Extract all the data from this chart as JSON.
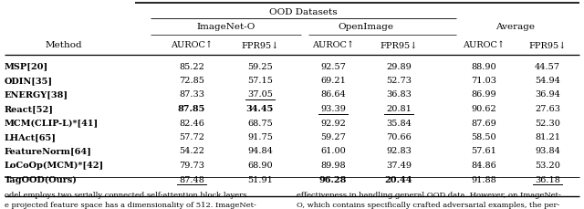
{
  "title": "OOD Datasets",
  "methods": [
    "MSP[20]",
    "ODIN[35]",
    "ENERGY[38]",
    "React[52]",
    "MCM(CLIP-L)*[41]",
    "LHAct[65]",
    "FeatureNorm[64]",
    "LoCoOp(MCM)*[42]",
    "TagOOD(Ours)"
  ],
  "data": [
    [
      85.22,
      59.25,
      92.57,
      29.89,
      88.9,
      44.57
    ],
    [
      72.85,
      57.15,
      69.21,
      52.73,
      71.03,
      54.94
    ],
    [
      87.33,
      37.05,
      86.64,
      36.83,
      86.99,
      36.94
    ],
    [
      87.85,
      34.45,
      93.39,
      20.81,
      90.62,
      27.63
    ],
    [
      82.46,
      68.75,
      92.92,
      35.84,
      87.69,
      52.3
    ],
    [
      57.72,
      91.75,
      59.27,
      70.66,
      58.5,
      81.21
    ],
    [
      54.22,
      94.84,
      61.0,
      92.83,
      57.61,
      93.84
    ],
    [
      79.73,
      68.9,
      89.98,
      37.49,
      84.86,
      53.2
    ],
    [
      87.48,
      51.91,
      96.28,
      20.44,
      91.88,
      36.18
    ]
  ],
  "bold_data": [
    [
      false,
      false,
      false,
      false,
      false,
      false
    ],
    [
      false,
      false,
      false,
      false,
      false,
      false
    ],
    [
      false,
      false,
      false,
      false,
      false,
      false
    ],
    [
      true,
      true,
      false,
      false,
      false,
      false
    ],
    [
      false,
      false,
      false,
      false,
      false,
      false
    ],
    [
      false,
      false,
      false,
      false,
      false,
      false
    ],
    [
      false,
      false,
      false,
      false,
      false,
      false
    ],
    [
      false,
      false,
      false,
      false,
      false,
      false
    ],
    [
      false,
      false,
      true,
      true,
      false,
      false
    ]
  ],
  "bold_method": [
    false,
    false,
    false,
    false,
    false,
    false,
    false,
    false,
    false
  ],
  "underline_data": [
    [
      false,
      false,
      false,
      false,
      false,
      false
    ],
    [
      false,
      false,
      false,
      false,
      false,
      false
    ],
    [
      false,
      true,
      false,
      false,
      false,
      false
    ],
    [
      false,
      false,
      true,
      true,
      false,
      false
    ],
    [
      false,
      false,
      false,
      false,
      false,
      false
    ],
    [
      false,
      false,
      false,
      false,
      false,
      false
    ],
    [
      false,
      false,
      false,
      false,
      false,
      false
    ],
    [
      false,
      false,
      false,
      false,
      false,
      false
    ],
    [
      true,
      false,
      false,
      false,
      false,
      true
    ]
  ],
  "footer_left": "odel employs two serially connected self-attention block layers.\ne projected feature space has a dimensionality of 512. ImageNet-",
  "footer_right": "effectiveness in handling general OOD data. However, on ImageNet-\nO, which contains specifically crafted adversarial examples, the per-",
  "col_headers": [
    "AUROC↑",
    "FPR95↓",
    "AUROC↑",
    "FPR95↓",
    "AUROC↑",
    "FPR95↓"
  ],
  "group_labels": [
    "ImageNet-O",
    "OpenImage",
    "Average"
  ],
  "method_header": "Method"
}
